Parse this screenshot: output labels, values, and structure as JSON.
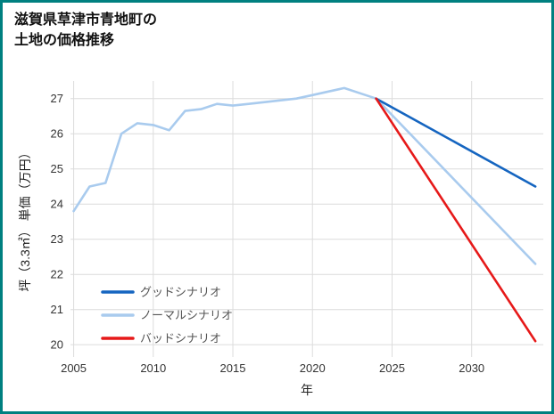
{
  "title": {
    "line1": "滋賀県草津市青地町の",
    "line2": "土地の価格推移"
  },
  "colors": {
    "border": "#008080",
    "grid": "#dcdcdc",
    "tick_text": "#333333",
    "legend_text": "#555555",
    "title_text": "#111111",
    "background": "#ffffff"
  },
  "chart_data": {
    "type": "line",
    "title": "滋賀県草津市青地町の土地の価格推移",
    "xlabel": "年",
    "ylabel": "坪（3.3㎡） 単価（万円）",
    "xlim": [
      2004.8,
      2034.5
    ],
    "ylim": [
      19.65,
      27.5
    ],
    "xticks": [
      2005,
      2010,
      2015,
      2020,
      2025,
      2030
    ],
    "yticks": [
      20,
      21,
      22,
      23,
      24,
      25,
      26,
      27
    ],
    "grid": true,
    "legend_position": "lower left",
    "legend": [
      "グッドシナリオ",
      "ノーマルシナリオ",
      "バッドシナリオ"
    ],
    "series": [
      {
        "id": "good",
        "name": "グッドシナリオ",
        "color": "#1565c0",
        "z": 1,
        "x": [
          2024,
          2034
        ],
        "y": [
          27.0,
          24.5
        ]
      },
      {
        "id": "normal",
        "name": "ノーマルシナリオ",
        "color": "#a9cbee",
        "z": 0,
        "x": [
          2005,
          2006,
          2007,
          2008,
          2009,
          2010,
          2011,
          2012,
          2013,
          2014,
          2015,
          2016,
          2017,
          2018,
          2019,
          2020,
          2021,
          2022,
          2023,
          2024,
          2034
        ],
        "y": [
          23.8,
          24.5,
          24.6,
          26.0,
          26.3,
          26.25,
          26.1,
          26.65,
          26.7,
          26.85,
          26.8,
          26.85,
          26.9,
          26.95,
          27.0,
          27.1,
          27.2,
          27.3,
          27.15,
          27.0,
          22.3
        ]
      },
      {
        "id": "bad",
        "name": "バッドシナリオ",
        "color": "#e61919",
        "z": 2,
        "x": [
          2024,
          2034
        ],
        "y": [
          27.0,
          20.1
        ]
      }
    ]
  }
}
